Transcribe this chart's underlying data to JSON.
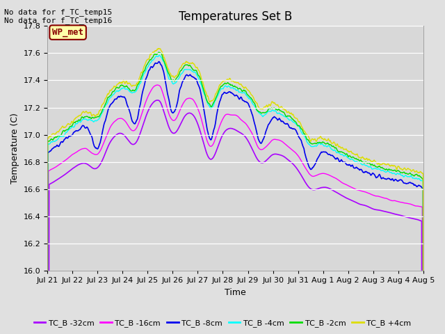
{
  "title": "Temperatures Set B",
  "xlabel": "Time",
  "ylabel": "Temperature (C)",
  "ylim": [
    16.0,
    17.8
  ],
  "yticks": [
    16.0,
    16.2,
    16.4,
    16.6,
    16.8,
    17.0,
    17.2,
    17.4,
    17.6,
    17.8
  ],
  "fig_bg_color": "#e0e0e0",
  "axes_bg_color": "#d8d8d8",
  "no_data_texts": [
    "No data for f_TC_temp15",
    "No data for f_TC_temp16"
  ],
  "wp_met_label": "WP_met",
  "wp_met_box_color": "#ffffaa",
  "wp_met_text_color": "#880000",
  "series": [
    {
      "label": "TC_B -32cm",
      "color": "#aa00ff"
    },
    {
      "label": "TC_B -16cm",
      "color": "#ff00ff"
    },
    {
      "label": "TC_B -8cm",
      "color": "#0000ee"
    },
    {
      "label": "TC_B -4cm",
      "color": "#00ffff"
    },
    {
      "label": "TC_B -2cm",
      "color": "#00dd00"
    },
    {
      "label": "TC_B +4cm",
      "color": "#dddd00"
    }
  ],
  "title_fontsize": 12,
  "axis_label_fontsize": 9,
  "tick_fontsize": 8,
  "legend_fontsize": 8,
  "nodata_fontsize": 8,
  "wpmet_fontsize": 9
}
